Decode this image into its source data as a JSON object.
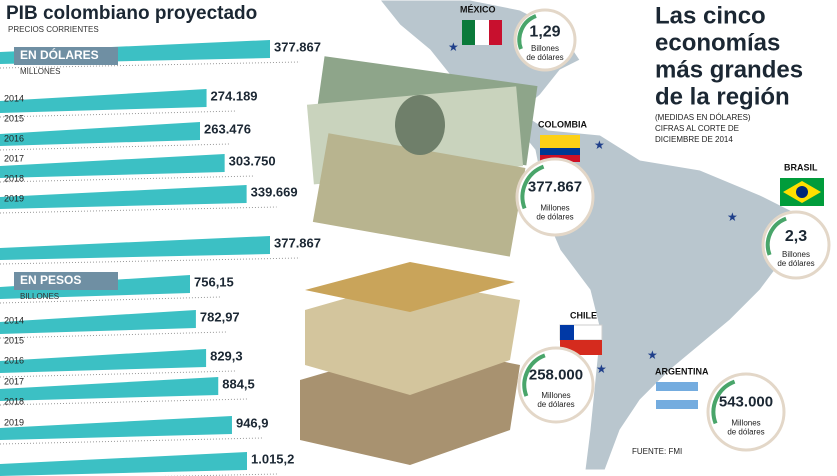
{
  "left": {
    "title": "PIB colombiano proyectado",
    "subtitle": "PRECIOS CORRIENTES",
    "dollars": {
      "label": "EN DÓLARES",
      "unit": "MILLONES",
      "years": [
        "2014",
        "2015",
        "2016",
        "2017",
        "2018",
        "2019"
      ],
      "values": [
        {
          "value": 377867,
          "label": "377.867"
        },
        {
          "value": 274189,
          "label": "274.189"
        },
        {
          "value": 263476,
          "label": "263.476"
        },
        {
          "value": 303750,
          "label": "303.750"
        },
        {
          "value": 339669,
          "label": "339.669"
        },
        {
          "value": 377867,
          "label": "377.867"
        }
      ]
    },
    "pesos": {
      "label": "EN PESOS",
      "unit": "BILLONES",
      "years": [
        "2014",
        "2015",
        "2016",
        "2017",
        "2018",
        "2019"
      ],
      "values": [
        {
          "value": 756.15,
          "label": "756,15"
        },
        {
          "value": 782.97,
          "label": "782,97"
        },
        {
          "value": 829.3,
          "label": "829,3"
        },
        {
          "value": 884.5,
          "label": "884,5"
        },
        {
          "value": 946.9,
          "label": "946,9"
        },
        {
          "value": 1015.2,
          "label": "1.015,2"
        }
      ]
    }
  },
  "right": {
    "title": [
      "Las cinco",
      "economías",
      "más grandes",
      "de la región"
    ],
    "note": [
      "(MEDIDAS EN DÓLARES)",
      "CIFRAS AL CORTE DE",
      "DICIEMBRE DE 2014"
    ],
    "countries": [
      {
        "name": "MÉXICO",
        "value": "1,29",
        "unit": [
          "Billones",
          "de dólares"
        ]
      },
      {
        "name": "COLOMBIA",
        "value": "377.867",
        "unit": [
          "Millones",
          "de dólares"
        ]
      },
      {
        "name": "BRASIL",
        "value": "2,3",
        "unit": [
          "Billones",
          "de dólares"
        ]
      },
      {
        "name": "CHILE",
        "value": "258.000",
        "unit": [
          "Millones",
          "de dólares"
        ]
      },
      {
        "name": "ARGENTINA",
        "value": "543.000",
        "unit": [
          "Millones",
          "de dólares"
        ]
      }
    ],
    "source": "FUENTE: FMI"
  }
}
